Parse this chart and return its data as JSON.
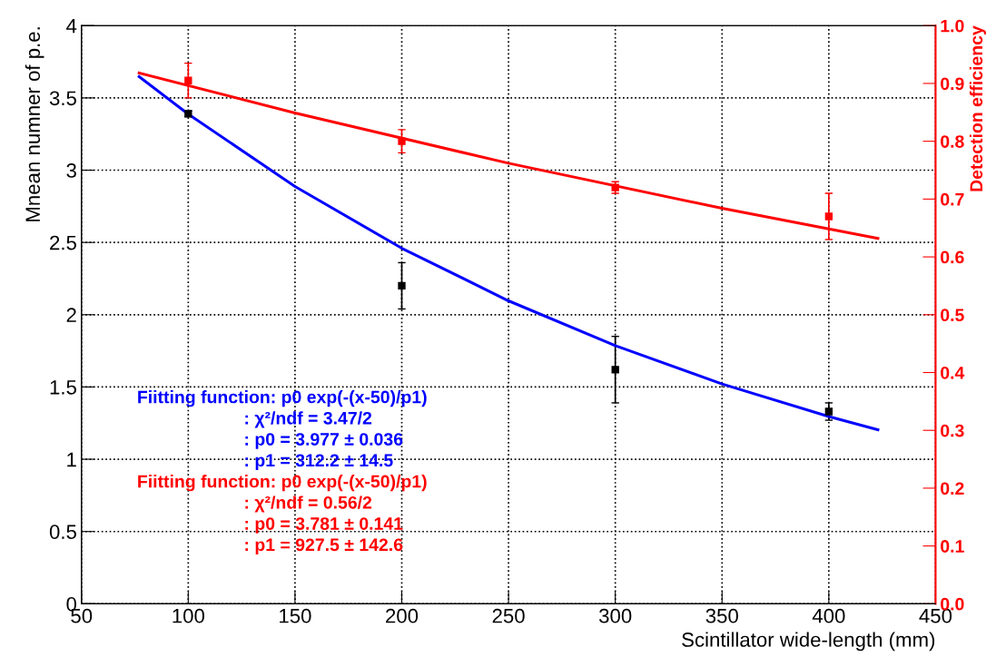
{
  "chart_data": {
    "type": "scatter",
    "xlabel": "Scintillator wide-length (mm)",
    "ylabel": "Mnean numner of p.e.",
    "y2label": "Detection efficiency",
    "xlim": [
      50,
      450
    ],
    "xticks": [
      50,
      100,
      150,
      200,
      250,
      300,
      350,
      400,
      450
    ],
    "ylim": [
      0,
      4
    ],
    "yticks": [
      0,
      0.5,
      1,
      1.5,
      2,
      2.5,
      3,
      3.5,
      4
    ],
    "y2lim": [
      0,
      1
    ],
    "y2ticks": [
      {
        "value": 0,
        "label": "0.0"
      },
      0.1,
      0.2,
      0.3,
      0.4,
      0.5,
      0.6,
      0.7,
      0.8,
      0.9,
      {
        "value": 1,
        "label": "1.0"
      }
    ],
    "grid": true,
    "series": [
      {
        "marker": "square",
        "color": "#000000",
        "x": [
          100,
          200,
          300,
          400
        ],
        "values": [
          3.39,
          2.2,
          1.62,
          1.33
        ],
        "errors": [
          0.02,
          0.16,
          0.23,
          0.06
        ]
      },
      {
        "type": "line",
        "marker": "none",
        "color": "#0000ff",
        "x": [
          77,
          100,
          150,
          200,
          250,
          300,
          350,
          400,
          423
        ],
        "values": [
          3.647,
          3.388,
          2.887,
          2.46,
          2.096,
          1.786,
          1.521,
          1.296,
          1.204
        ]
      },
      {
        "marker": "square",
        "axis": "y2",
        "color": "#ff0000",
        "x": [
          100,
          200,
          300,
          400
        ],
        "values": [
          0.905,
          0.8,
          0.72,
          0.67
        ],
        "errors": [
          0.03,
          0.02,
          0.01,
          0.04
        ]
      },
      {
        "type": "line",
        "marker": "none",
        "axis": "y2",
        "color": "#ff0000",
        "x": [
          77,
          150,
          250,
          350,
          423
        ],
        "values": [
          0.918,
          0.849,
          0.762,
          0.684,
          0.632
        ]
      }
    ],
    "annotations": [
      "Fiitting function: p0 exp(-(x-50)/p1)",
      ": χ²/ndf = 3.47/2",
      ": p0 = 3.977 ± 0.036",
      ": p1 = 312.2 ± 14.5",
      "Fiitting function: p0 exp(-(x-50)/p1)",
      ": χ²/ndf = 0.56/2",
      ": p0 = 3.781 ± 0.141",
      ": p1 = 927.5 ± 142.6"
    ]
  }
}
